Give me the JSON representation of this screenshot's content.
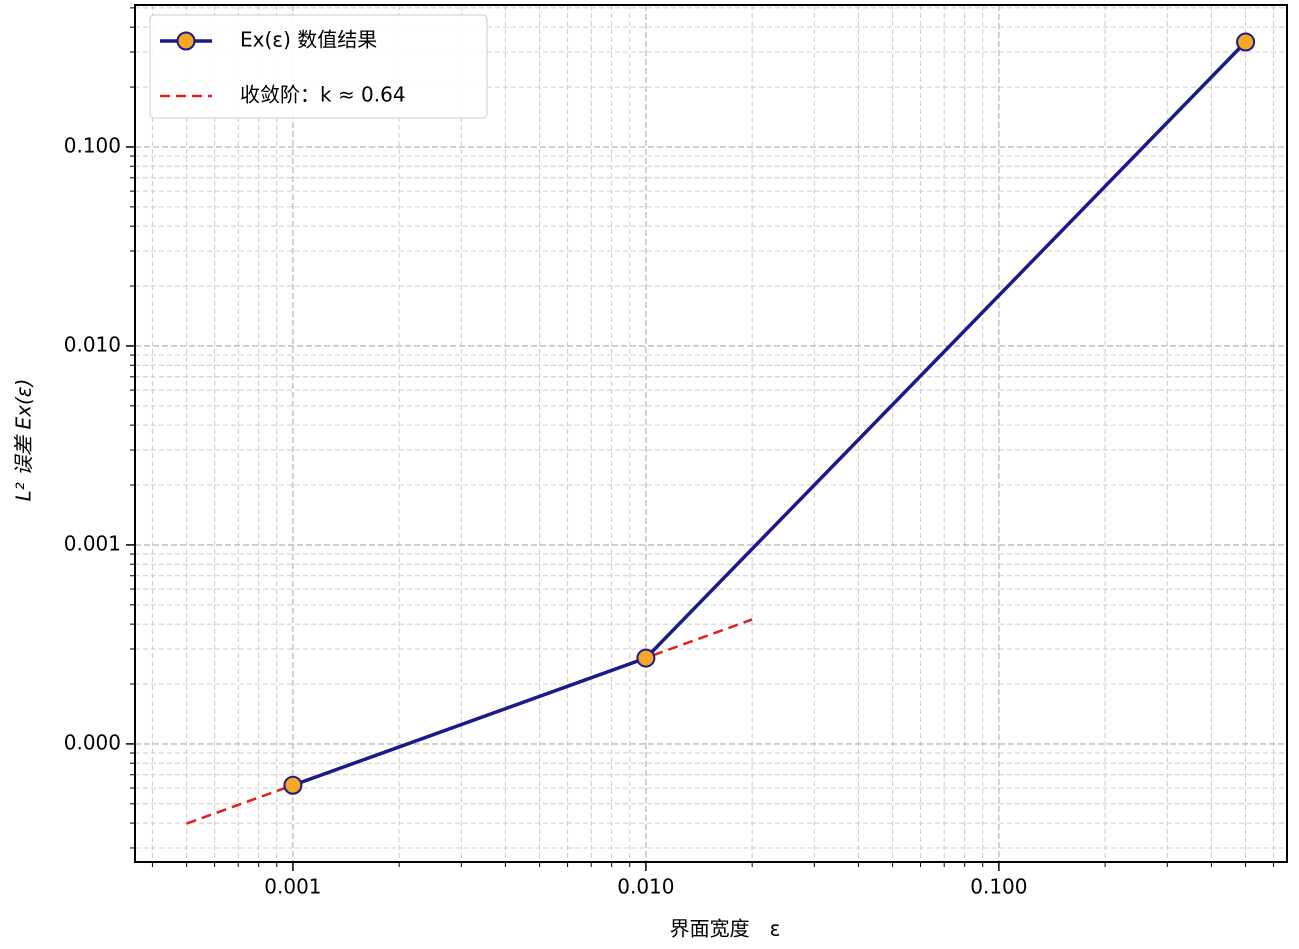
{
  "chart_data": {
    "type": "line",
    "x_label": "界面宽度　ε",
    "y_label": "L² 误差 Ex(ε)",
    "xscale": "log",
    "yscale": "log",
    "grid": true,
    "legend": "upper left",
    "xlim": [
      0.000357,
      0.655
    ],
    "ylim": [
      2.55e-05,
      0.517
    ],
    "xticks": [
      {
        "value": 0.001,
        "label": "0.001"
      },
      {
        "value": 0.01,
        "label": "0.010"
      },
      {
        "value": 0.1,
        "label": "0.100"
      }
    ],
    "yticks": [
      {
        "value": 0.0001,
        "label": "0.000"
      },
      {
        "value": 0.001,
        "label": "0.001"
      },
      {
        "value": 0.01,
        "label": "0.010"
      },
      {
        "value": 0.1,
        "label": "0.100"
      }
    ],
    "xminorticks": [
      0.0004,
      0.0005,
      0.0006,
      0.0007,
      0.0008,
      0.0009,
      0.002,
      0.003,
      0.004,
      0.005,
      0.006,
      0.007,
      0.008,
      0.009,
      0.02,
      0.03,
      0.04,
      0.05,
      0.06,
      0.07,
      0.08,
      0.09,
      0.2,
      0.3,
      0.4,
      0.5,
      0.6
    ],
    "yminorticks": [
      3e-05,
      4e-05,
      5e-05,
      6e-05,
      7e-05,
      8e-05,
      9e-05,
      0.0002,
      0.0003,
      0.0004,
      0.0005,
      0.0006,
      0.0007,
      0.0008,
      0.0009,
      0.002,
      0.003,
      0.004,
      0.005,
      0.006,
      0.007,
      0.008,
      0.009,
      0.02,
      0.03,
      0.04,
      0.05,
      0.06,
      0.07,
      0.08,
      0.09,
      0.2,
      0.3,
      0.4,
      0.5
    ],
    "series": [
      {
        "name": "Ex(ε) 数值结果",
        "color": "#1a1a8c",
        "marker_color": "#f5a623",
        "style": "solid",
        "marker": true,
        "x": [
          0.001,
          0.01,
          0.5
        ],
        "values": [
          6.2e-05,
          0.00027,
          0.337
        ]
      },
      {
        "name": "收敛阶：k ≈ 0.64",
        "color": "#e02020",
        "style": "dashed",
        "marker": false,
        "x": [
          0.0005,
          0.02
        ],
        "values": [
          3.98e-05,
          0.000422
        ]
      }
    ]
  }
}
